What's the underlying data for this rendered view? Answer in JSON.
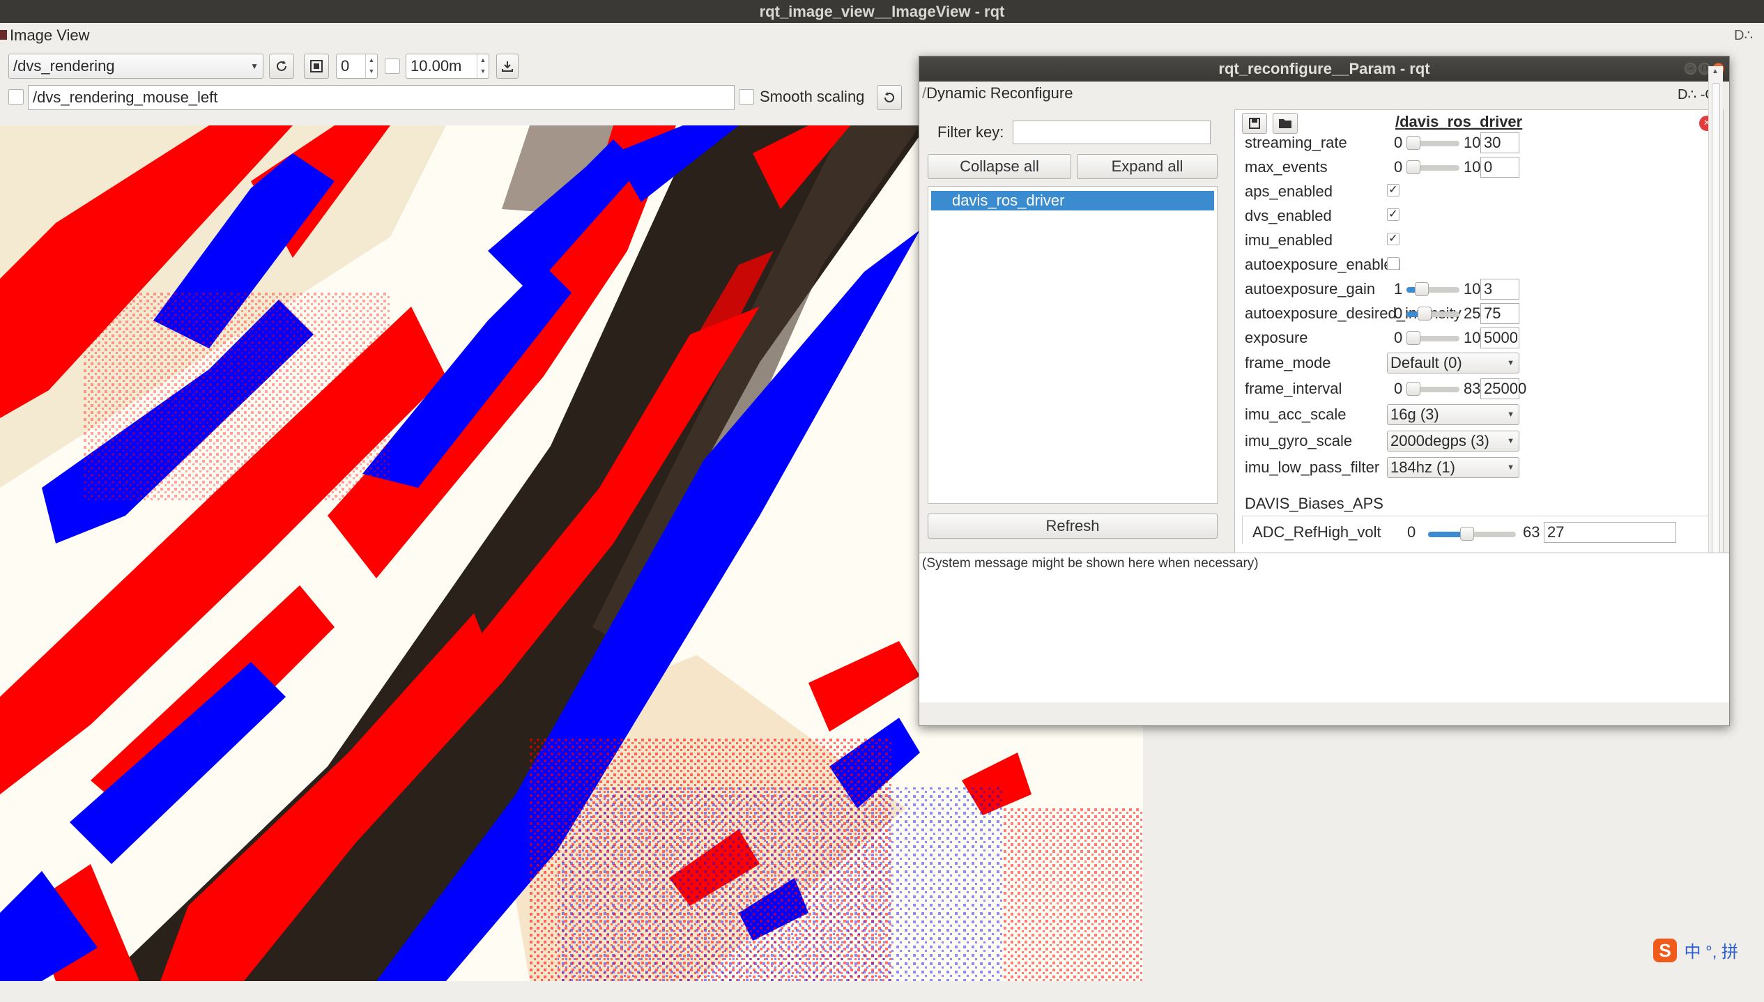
{
  "main_window": {
    "title": "rqt_image_view__ImageView - rqt",
    "dock_title": "Image View",
    "dock_controls": "D∴"
  },
  "toolbar": {
    "topic": "/dvs_rendering",
    "refresh_icon": "refresh-icon",
    "fit_icon": "fit-icon",
    "rotation_value": "0",
    "max_range_value": "10.00m",
    "save_icon": "save-image-icon",
    "mouse_topic": "/dvs_rendering_mouse_left",
    "smooth_scaling_label": "Smooth scaling",
    "rotate_icon": "rotate-icon"
  },
  "reconfigure": {
    "title": "rqt_reconfigure__Param - rqt",
    "panel_title": "Dynamic Reconfigure",
    "panel_controls": "D∴ -O",
    "filter_label": "Filter key:",
    "filter_value": "",
    "collapse_all": "Collapse all",
    "expand_all": "Expand all",
    "nodes": [
      "davis_ros_driver"
    ],
    "refresh": "Refresh",
    "node_path": "/davis_ros_driver",
    "system_message": "(System message might be shown here when necessary)",
    "params": [
      {
        "name": "streaming_rate",
        "type": "slider",
        "min": "0",
        "max": "10(",
        "value": "30",
        "fraction": 0.0
      },
      {
        "name": "max_events",
        "type": "slider",
        "min": "0",
        "max": "10(",
        "value": "0",
        "fraction": 0.0
      },
      {
        "name": "aps_enabled",
        "type": "bool",
        "checked": true
      },
      {
        "name": "dvs_enabled",
        "type": "bool",
        "checked": true
      },
      {
        "name": "imu_enabled",
        "type": "bool",
        "checked": true
      },
      {
        "name": "autoexposure_enabled",
        "type": "bool",
        "checked": false
      },
      {
        "name": "autoexposure_gain",
        "type": "slider",
        "min": "1",
        "max": "10",
        "value": "3",
        "fraction": 0.22
      },
      {
        "name": "autoexposure_desired_intensity",
        "type": "slider",
        "min": "0",
        "max": "25!",
        "value": "75",
        "fraction": 0.29
      },
      {
        "name": "exposure",
        "type": "slider",
        "min": "0",
        "max": "10(",
        "value": "5000",
        "fraction": 0.0
      },
      {
        "name": "frame_mode",
        "type": "combo",
        "value": "Default (0)"
      },
      {
        "name": "frame_interval",
        "type": "slider",
        "min": "0",
        "max": "83!",
        "value": "25000",
        "fraction": 0.0
      },
      {
        "name": "imu_acc_scale",
        "type": "combo",
        "value": "16g (3)"
      },
      {
        "name": "imu_gyro_scale",
        "type": "combo",
        "value": "2000degps (3)"
      },
      {
        "name": "imu_low_pass_filter",
        "type": "combo",
        "value": "184hz (1)"
      }
    ],
    "group": {
      "name": "DAVIS_Biases_APS",
      "param": {
        "name": "ADC_RefHigh_volt",
        "min": "0",
        "max": "63",
        "value": "27",
        "fraction": 0.43
      }
    }
  },
  "ime": {
    "logo": "S",
    "text": "中 °, 拼"
  },
  "colors": {
    "event_positive": "#ff0000",
    "event_negative": "#0000ff",
    "selection": "#3a8bd0",
    "titlebar": "#3a3936"
  }
}
